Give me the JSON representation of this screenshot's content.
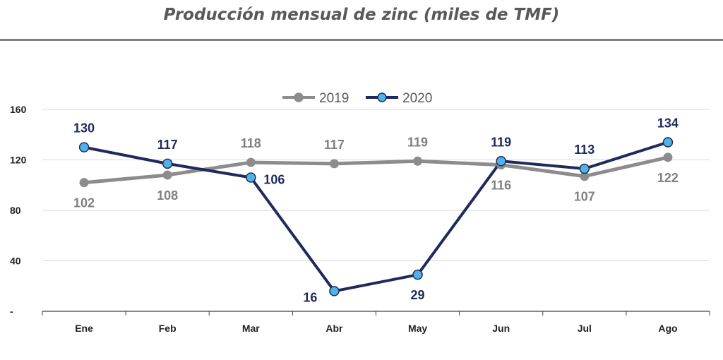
{
  "chart_data": {
    "type": "line",
    "title": "Producción mensual de zinc (miles de TMF)",
    "categories": [
      "Ene",
      "Feb",
      "Mar",
      "Abr",
      "May",
      "Jun",
      "Jul",
      "Ago"
    ],
    "series": [
      {
        "name": "2019",
        "values": [
          102,
          108,
          118,
          117,
          119,
          116,
          107,
          122
        ],
        "labels": [
          "102",
          "108",
          "118",
          "117",
          "119",
          "116",
          "107",
          "122"
        ],
        "label_pos": [
          "below",
          "below",
          "above",
          "above",
          "above",
          "below",
          "below",
          "below"
        ],
        "color": "#8c8c8c"
      },
      {
        "name": "2020",
        "values": [
          130,
          117,
          106,
          16,
          29,
          119,
          113,
          134
        ],
        "labels": [
          "130",
          "117",
          "106",
          "16",
          "29",
          "119",
          "113",
          "134"
        ],
        "label_pos": [
          "above",
          "above",
          "right",
          "left",
          "below",
          "above",
          "above",
          "above"
        ],
        "color": "#1f2a5c",
        "marker_color": "#4fb3e8"
      }
    ],
    "ylim": [
      0,
      160
    ],
    "yticks": [
      {
        "value": 0,
        "label": "-"
      },
      {
        "value": 40,
        "label": "40"
      },
      {
        "value": 80,
        "label": "80"
      },
      {
        "value": 120,
        "label": "120"
      },
      {
        "value": 160,
        "label": "160"
      }
    ],
    "grid": true,
    "legend": "top-center"
  }
}
